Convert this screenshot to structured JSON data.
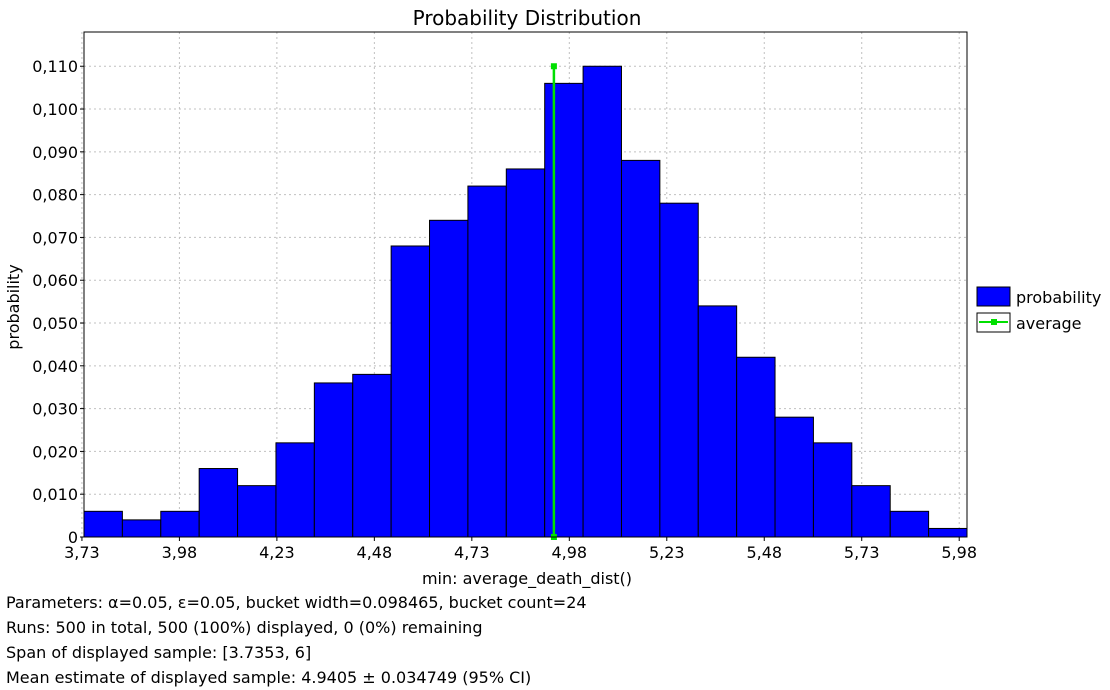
{
  "chart_data": {
    "type": "bar",
    "title": "Probability Distribution",
    "xlabel": "min: average_death_dist()",
    "ylabel": "probability",
    "xlim": [
      3.7353,
      6.0
    ],
    "ylim": [
      0,
      0.118
    ],
    "bucket_start": 3.7353,
    "bucket_width": 0.098465,
    "x_ticks": [
      3.73,
      3.98,
      4.23,
      4.48,
      4.73,
      4.98,
      5.23,
      5.48,
      5.73,
      5.98
    ],
    "x_tick_labels": [
      "3,73",
      "3,98",
      "4,23",
      "4,48",
      "4,73",
      "4,98",
      "5,23",
      "5,48",
      "5,73",
      "5,98"
    ],
    "y_ticks": [
      0,
      0.01,
      0.02,
      0.03,
      0.04,
      0.05,
      0.06,
      0.07,
      0.08,
      0.09,
      0.1,
      0.11
    ],
    "y_tick_labels": [
      "0",
      "0,010",
      "0,020",
      "0,030",
      "0,040",
      "0,050",
      "0,060",
      "0,070",
      "0,080",
      "0,090",
      "0,100",
      "0,110"
    ],
    "grid": true,
    "legend_position": "right",
    "series": [
      {
        "name": "probability",
        "kind": "bar",
        "color": "#0000ff",
        "values": [
          0.006,
          0.004,
          0.006,
          0.016,
          0.012,
          0.022,
          0.036,
          0.038,
          0.068,
          0.074,
          0.082,
          0.086,
          0.106,
          0.11,
          0.088,
          0.078,
          0.054,
          0.042,
          0.028,
          0.022,
          0.012,
          0.006,
          0.002,
          0.002
        ]
      },
      {
        "name": "average",
        "kind": "vertical-line",
        "color": "#00e000",
        "x": 4.9405,
        "y_range": [
          0,
          0.11
        ]
      }
    ]
  },
  "info": {
    "parameters": "Parameters: α=0.05, ε=0.05, bucket width=0.098465, bucket count=24",
    "runs": "Runs: 500 in total, 500 (100%) displayed, 0 (0%) remaining",
    "span": "Span of displayed sample: [3.7353, 6]",
    "mean": "Mean estimate of displayed sample: 4.9405 ± 0.034749 (95% CI)"
  }
}
